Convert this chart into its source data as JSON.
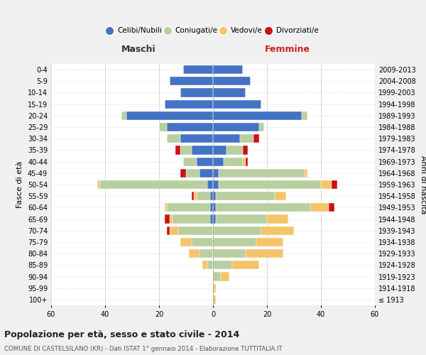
{
  "age_groups": [
    "100+",
    "95-99",
    "90-94",
    "85-89",
    "80-84",
    "75-79",
    "70-74",
    "65-69",
    "60-64",
    "55-59",
    "50-54",
    "45-49",
    "40-44",
    "35-39",
    "30-34",
    "25-29",
    "20-24",
    "15-19",
    "10-14",
    "5-9",
    "0-4"
  ],
  "birth_years": [
    "≤ 1913",
    "1914-1918",
    "1919-1923",
    "1924-1928",
    "1929-1933",
    "1934-1938",
    "1939-1943",
    "1944-1948",
    "1949-1953",
    "1954-1958",
    "1959-1963",
    "1964-1968",
    "1969-1973",
    "1974-1978",
    "1979-1983",
    "1984-1988",
    "1989-1993",
    "1994-1998",
    "1999-2003",
    "2004-2008",
    "2009-2013"
  ],
  "colors": {
    "celibi": "#4472c4",
    "coniugati": "#b8cfa0",
    "vedovi": "#f5c469",
    "divorziati": "#cc1111"
  },
  "males": {
    "celibi": [
      0,
      0,
      0,
      0,
      0,
      0,
      0,
      1,
      1,
      1,
      2,
      5,
      6,
      8,
      12,
      17,
      32,
      18,
      12,
      16,
      11
    ],
    "coniugati": [
      0,
      0,
      0,
      2,
      5,
      8,
      13,
      14,
      16,
      5,
      40,
      5,
      5,
      4,
      5,
      3,
      2,
      0,
      0,
      0,
      0
    ],
    "vedovi": [
      0,
      0,
      0,
      2,
      4,
      4,
      3,
      1,
      1,
      1,
      1,
      0,
      0,
      0,
      0,
      0,
      0,
      0,
      0,
      0,
      0
    ],
    "divorziati": [
      0,
      0,
      0,
      0,
      0,
      0,
      1,
      2,
      0,
      1,
      0,
      2,
      0,
      2,
      0,
      0,
      0,
      0,
      0,
      0,
      0
    ]
  },
  "females": {
    "celibi": [
      0,
      0,
      0,
      0,
      0,
      0,
      0,
      1,
      1,
      1,
      2,
      2,
      4,
      5,
      10,
      17,
      33,
      18,
      12,
      14,
      11
    ],
    "coniugati": [
      0,
      0,
      3,
      7,
      12,
      16,
      18,
      19,
      35,
      22,
      38,
      32,
      7,
      6,
      5,
      2,
      2,
      0,
      0,
      0,
      0
    ],
    "vedovi": [
      1,
      1,
      3,
      10,
      14,
      10,
      12,
      8,
      7,
      4,
      4,
      1,
      1,
      0,
      0,
      0,
      0,
      0,
      0,
      0,
      0
    ],
    "divorziati": [
      0,
      0,
      0,
      0,
      0,
      0,
      0,
      0,
      2,
      0,
      2,
      0,
      1,
      2,
      2,
      0,
      0,
      0,
      0,
      0,
      0
    ]
  },
  "title": "Popolazione per età, sesso e stato civile - 2014",
  "subtitle": "COMUNE DI CASTELSILANO (KR) - Dati ISTAT 1° gennaio 2014 - Elaborazione TUTTITALIA.IT",
  "xlabel_left": "Maschi",
  "xlabel_right": "Femmine",
  "ylabel_left": "Fasce di età",
  "ylabel_right": "Anni di nascita",
  "xlim": 60,
  "bg_color": "#f0f0f0",
  "plot_bg": "#ffffff",
  "legend_labels": [
    "Celibi/Nubili",
    "Coniugati/e",
    "Vedovi/e",
    "Divorziati/e"
  ]
}
